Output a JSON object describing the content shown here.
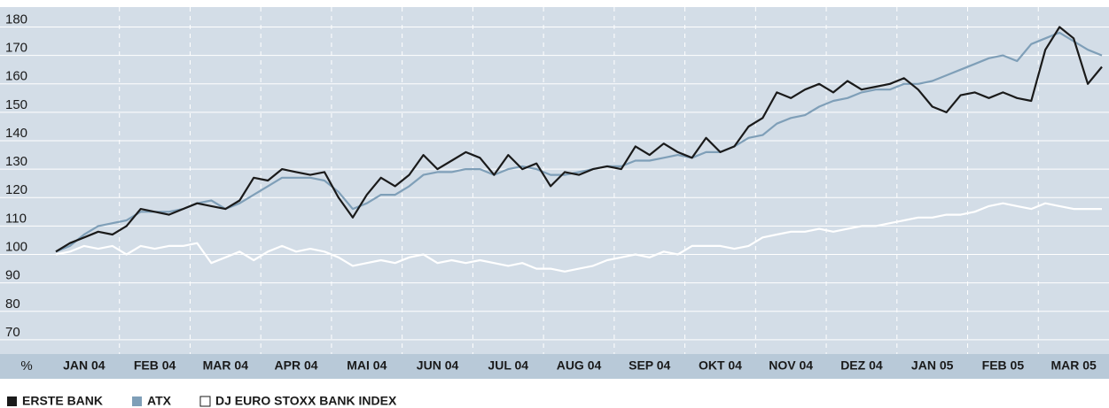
{
  "chart_data": {
    "type": "line",
    "categories": [
      null,
      null,
      "JAN 04",
      null,
      null,
      null,
      null,
      "FEB 04",
      null,
      null,
      null,
      null,
      "MAR 04",
      null,
      null,
      null,
      null,
      "APR 04",
      null,
      null,
      null,
      null,
      "MAI 04",
      null,
      null,
      null,
      null,
      "JUN 04",
      null,
      null,
      null,
      null,
      "JUL 04",
      null,
      null,
      null,
      null,
      "AUG 04",
      null,
      null,
      null,
      null,
      "SEP 04",
      null,
      null,
      null,
      null,
      "OKT 04",
      null,
      null,
      null,
      null,
      "NOV 04",
      null,
      null,
      null,
      null,
      "DEZ 04",
      null,
      null,
      null,
      null,
      "JAN 05",
      null,
      null,
      null,
      null,
      "FEB 05",
      null,
      null,
      null,
      null,
      "MAR 05",
      null,
      null
    ],
    "y_label": "%",
    "ylim": [
      65,
      187
    ],
    "yticks": [
      70,
      80,
      90,
      100,
      110,
      120,
      130,
      140,
      150,
      160,
      170,
      180
    ],
    "grid": true,
    "legend": "bottom-left",
    "series": [
      {
        "name": "ERSTE BANK",
        "color": "#1a1a1a",
        "values": [
          101,
          104,
          106,
          108,
          107,
          110,
          116,
          115,
          114,
          116,
          118,
          117,
          116,
          119,
          127,
          126,
          130,
          129,
          128,
          129,
          120,
          113,
          121,
          127,
          124,
          128,
          135,
          130,
          133,
          136,
          134,
          128,
          135,
          130,
          132,
          124,
          129,
          128,
          130,
          131,
          130,
          138,
          135,
          139,
          136,
          134,
          141,
          136,
          138,
          145,
          148,
          157,
          155,
          158,
          160,
          157,
          161,
          158,
          159,
          160,
          162,
          158,
          152,
          150,
          156,
          157,
          155,
          157,
          155,
          154,
          172,
          180,
          176,
          160,
          166
        ]
      },
      {
        "name": "ATX",
        "color": "#7f9fb8",
        "values": [
          101,
          103,
          107,
          110,
          111,
          112,
          115,
          115,
          115,
          116,
          118,
          119,
          116,
          118,
          121,
          124,
          127,
          127,
          127,
          126,
          122,
          116,
          118,
          121,
          121,
          124,
          128,
          129,
          129,
          130,
          130,
          128,
          130,
          131,
          130,
          128,
          128,
          129,
          130,
          131,
          131,
          133,
          133,
          134,
          135,
          134,
          136,
          136,
          138,
          141,
          142,
          146,
          148,
          149,
          152,
          154,
          155,
          157,
          158,
          158,
          160,
          160,
          161,
          163,
          165,
          167,
          169,
          170,
          168,
          174,
          176,
          178,
          175,
          172,
          170
        ]
      },
      {
        "name": "DJ EURO STOXX BANK INDEX",
        "color": "#ffffff",
        "values": [
          100,
          101,
          103,
          102,
          103,
          100,
          103,
          102,
          103,
          103,
          104,
          97,
          99,
          101,
          98,
          101,
          103,
          101,
          102,
          101,
          99,
          96,
          97,
          98,
          97,
          99,
          100,
          97,
          98,
          97,
          98,
          97,
          96,
          97,
          95,
          95,
          94,
          95,
          96,
          98,
          99,
          100,
          99,
          101,
          100,
          103,
          103,
          103,
          102,
          103,
          106,
          107,
          108,
          108,
          109,
          108,
          109,
          110,
          110,
          111,
          112,
          113,
          113,
          114,
          114,
          115,
          117,
          118,
          117,
          116,
          118,
          117,
          116,
          116,
          116
        ]
      }
    ]
  }
}
